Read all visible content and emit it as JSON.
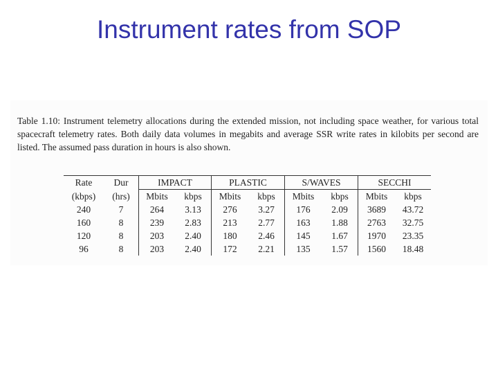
{
  "header": {
    "title": "Instrument rates from SOP"
  },
  "caption": "Table 1.10: Instrument telemetry allocations during the extended mission, not including space weather, for various total spacecraft telemetry rates. Both daily data volumes in megabits and average SSR write rates in kilobits per second are listed. The assumed pass duration in hours is also shown.",
  "table": {
    "group_header": [
      "Rate",
      "Dur",
      "IMPACT",
      "PLASTIC",
      "S/WAVES",
      "SECCHI"
    ],
    "sub_header": [
      "(kbps)",
      "(hrs)",
      "Mbits",
      "kbps",
      "Mbits",
      "kbps",
      "Mbits",
      "kbps",
      "Mbits",
      "kbps"
    ],
    "rows": [
      [
        "240",
        "7",
        "264",
        "3.13",
        "276",
        "3.27",
        "176",
        "2.09",
        "3689",
        "43.72"
      ],
      [
        "160",
        "8",
        "239",
        "2.83",
        "213",
        "2.77",
        "163",
        "1.88",
        "2763",
        "32.75"
      ],
      [
        "120",
        "8",
        "203",
        "2.40",
        "180",
        "2.46",
        "145",
        "1.67",
        "1970",
        "23.35"
      ],
      [
        "96",
        "8",
        "203",
        "2.40",
        "172",
        "2.21",
        "135",
        "1.57",
        "1560",
        "18.48"
      ]
    ]
  }
}
